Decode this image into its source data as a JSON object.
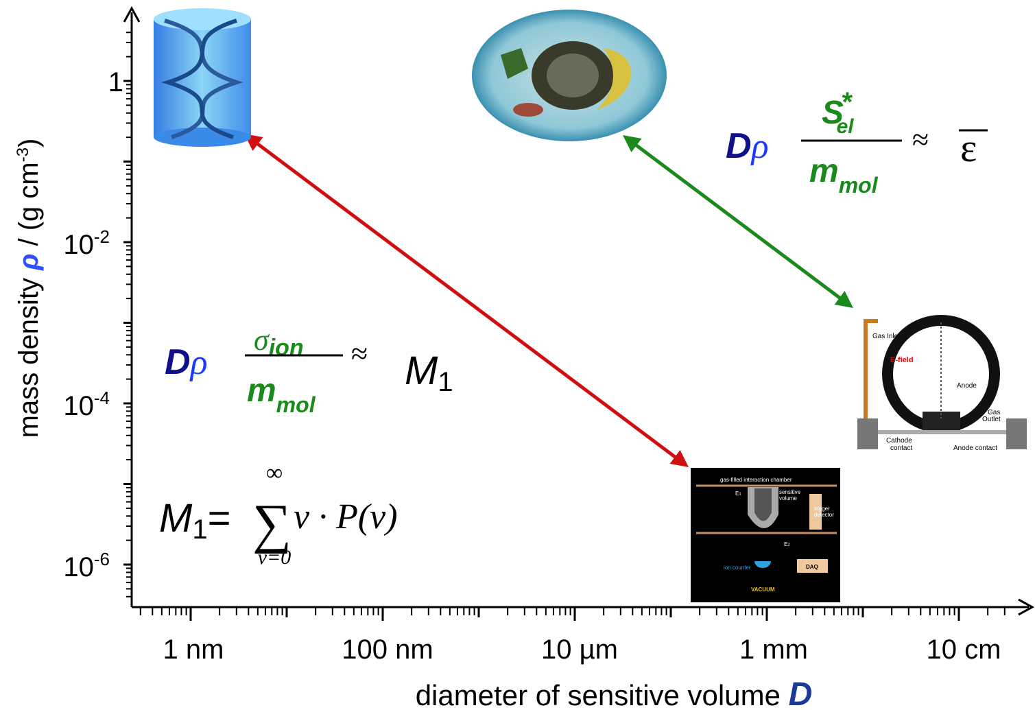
{
  "axes": {
    "y_label": {
      "text": "mass density ",
      "symbol": "ρ",
      "unit": " / (g cm",
      "exp": "-3",
      "close": ")"
    },
    "x_label": {
      "text": "diameter of sensitive volume ",
      "symbol": "D"
    },
    "y_ticks": [
      {
        "base": "1"
      },
      {
        "base": "10",
        "exp": "-2"
      },
      {
        "base": "10",
        "exp": "-4"
      },
      {
        "base": "10",
        "exp": "-6"
      }
    ],
    "x_ticks": [
      "1 nm",
      "100 nm",
      "10 µm",
      "1 mm",
      "10 cm"
    ]
  },
  "equations": {
    "ion": {
      "d": "D",
      "rho": "ρ",
      "num": "σ",
      "num_sub": "ion",
      "den": "m",
      "den_sub": "mol",
      "approx": "≈",
      "rhs": "M",
      "rhs_sub": "1"
    },
    "el": {
      "d": "D",
      "rho": "ρ",
      "num": "S",
      "num_sup": "*",
      "num_sub": "el",
      "den": "m",
      "den_sub": "mol",
      "approx": "≈",
      "rhs": "ε"
    },
    "moment": {
      "lhs": "M",
      "lhs_sub": "1",
      "eq": "=",
      "sum": "∑",
      "upper": "∞",
      "lower": "ν=0",
      "body": "ν · P(ν)"
    }
  },
  "detector_gas": {
    "labels": [
      "Gas Inlet",
      "E-field",
      "Anode",
      "Gas",
      "Outlet",
      "Cathode",
      "contact",
      "Anode contact"
    ]
  },
  "detector_ion": {
    "labels": [
      "gas-filled interaction chamber",
      "E",
      "1",
      "sensitive",
      "volume",
      "trigger",
      "detector",
      "E",
      "2",
      "ion counter",
      "DAQ",
      "VACUUM"
    ]
  }
}
